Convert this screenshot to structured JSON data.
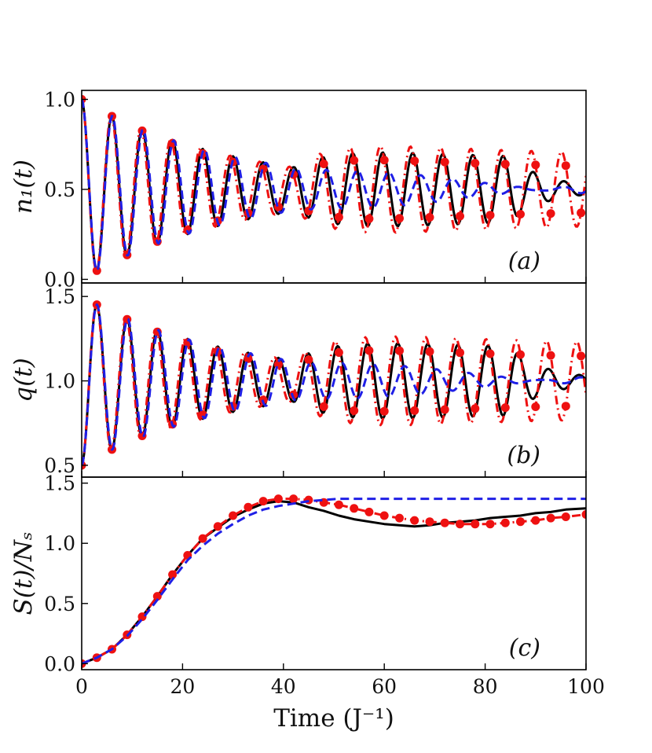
{
  "figure": {
    "xlabel": "Time (J⁻¹)",
    "x_ticks": [
      "0",
      "20",
      "40",
      "60",
      "80",
      "100"
    ]
  },
  "colors": {
    "black": "#000000",
    "blue": "#1f1fe6",
    "red": "#ee1111"
  },
  "chart_data": [
    {
      "type": "line",
      "panel": "a",
      "annotation": "(a)",
      "ylabel": "n₁(t)",
      "xlim": [
        0,
        100
      ],
      "ylim": [
        -0.02,
        1.05
      ],
      "y_ticks": [
        0.0,
        0.5,
        1.0
      ],
      "y_tick_labels": [
        "0.0",
        "0.5",
        "1.0"
      ],
      "model": {
        "kind": "osc",
        "base": 0.5,
        "amp": 0.5,
        "period": 6.0,
        "phase": 0.0,
        "tau": 30.0,
        "rev": 0.16,
        "rev_start": 42,
        "rev_tau": 8
      },
      "series": [
        {
          "name": "black solid",
          "color": "black",
          "style": "solid",
          "markers": false
        },
        {
          "name": "red dash-dot with circles",
          "color": "red",
          "style": "dashdot",
          "markers": true
        },
        {
          "name": "blue dashed",
          "color": "blue",
          "style": "dashed",
          "markers": false
        }
      ]
    },
    {
      "type": "line",
      "panel": "b",
      "annotation": "(b)",
      "ylabel": "q(t)",
      "xlim": [
        0,
        100
      ],
      "ylim": [
        0.43,
        1.58
      ],
      "y_ticks": [
        0.5,
        1.0,
        1.5
      ],
      "y_tick_labels": [
        "0.5",
        "1.0",
        "1.5"
      ],
      "model": {
        "kind": "osc",
        "base": 1.0,
        "amp": -0.5,
        "period": 6.0,
        "phase": 0.0,
        "tau": 30.0,
        "rev": 0.18,
        "rev_start": 42,
        "rev_tau": 8
      },
      "series": [
        {
          "name": "black solid",
          "color": "black",
          "style": "solid",
          "markers": false
        },
        {
          "name": "red dash-dot with circles",
          "color": "red",
          "style": "dashdot",
          "markers": true
        },
        {
          "name": "blue dashed",
          "color": "blue",
          "style": "dashed",
          "markers": false
        }
      ]
    },
    {
      "type": "line",
      "panel": "c",
      "annotation": "(c)",
      "ylabel": "S(t)/Nₛ",
      "xlim": [
        0,
        100
      ],
      "ylim": [
        -0.05,
        1.55
      ],
      "y_ticks": [
        0.0,
        0.5,
        1.0,
        1.5
      ],
      "y_tick_labels": [
        "0.0",
        "0.5",
        "1.0",
        "1.5"
      ],
      "x_tick_labels_visible": true,
      "model": {
        "kind": "entropy"
      },
      "series": [
        {
          "name": "black solid",
          "color": "black",
          "style": "solid",
          "markers": false,
          "x": [
            0,
            3,
            6,
            9,
            12,
            15,
            18,
            21,
            24,
            27,
            30,
            33,
            36,
            39,
            42,
            45,
            48,
            51,
            54,
            57,
            60,
            63,
            66,
            69,
            72,
            75,
            78,
            81,
            84,
            87,
            90,
            93,
            96,
            100
          ],
          "y": [
            0.0,
            0.05,
            0.12,
            0.24,
            0.39,
            0.56,
            0.74,
            0.9,
            1.04,
            1.13,
            1.22,
            1.28,
            1.33,
            1.35,
            1.34,
            1.3,
            1.27,
            1.23,
            1.2,
            1.18,
            1.16,
            1.15,
            1.14,
            1.15,
            1.17,
            1.18,
            1.19,
            1.21,
            1.22,
            1.23,
            1.25,
            1.26,
            1.28,
            1.29
          ]
        },
        {
          "name": "red dash-dot with circles",
          "color": "red",
          "style": "dashdot",
          "markers": true,
          "x": [
            0,
            3,
            6,
            9,
            12,
            15,
            18,
            21,
            24,
            27,
            30,
            33,
            36,
            39,
            42,
            45,
            48,
            51,
            54,
            57,
            60,
            63,
            66,
            69,
            72,
            75,
            78,
            81,
            84,
            87,
            90,
            93,
            96,
            100
          ],
          "y": [
            0.0,
            0.05,
            0.12,
            0.24,
            0.39,
            0.56,
            0.74,
            0.9,
            1.04,
            1.14,
            1.23,
            1.3,
            1.35,
            1.37,
            1.37,
            1.36,
            1.34,
            1.32,
            1.29,
            1.26,
            1.23,
            1.21,
            1.19,
            1.18,
            1.17,
            1.16,
            1.16,
            1.16,
            1.17,
            1.18,
            1.19,
            1.21,
            1.22,
            1.24
          ]
        },
        {
          "name": "blue dashed",
          "color": "blue",
          "style": "dashed",
          "markers": false,
          "x": [
            0,
            3,
            6,
            9,
            12,
            15,
            18,
            21,
            24,
            27,
            30,
            33,
            36,
            39,
            42,
            45,
            48,
            51,
            54,
            57,
            60,
            70,
            80,
            90,
            100
          ],
          "y": [
            0.0,
            0.05,
            0.12,
            0.23,
            0.37,
            0.53,
            0.7,
            0.86,
            0.98,
            1.08,
            1.16,
            1.23,
            1.28,
            1.31,
            1.33,
            1.35,
            1.36,
            1.37,
            1.37,
            1.37,
            1.37,
            1.37,
            1.37,
            1.37,
            1.37
          ]
        }
      ]
    }
  ]
}
